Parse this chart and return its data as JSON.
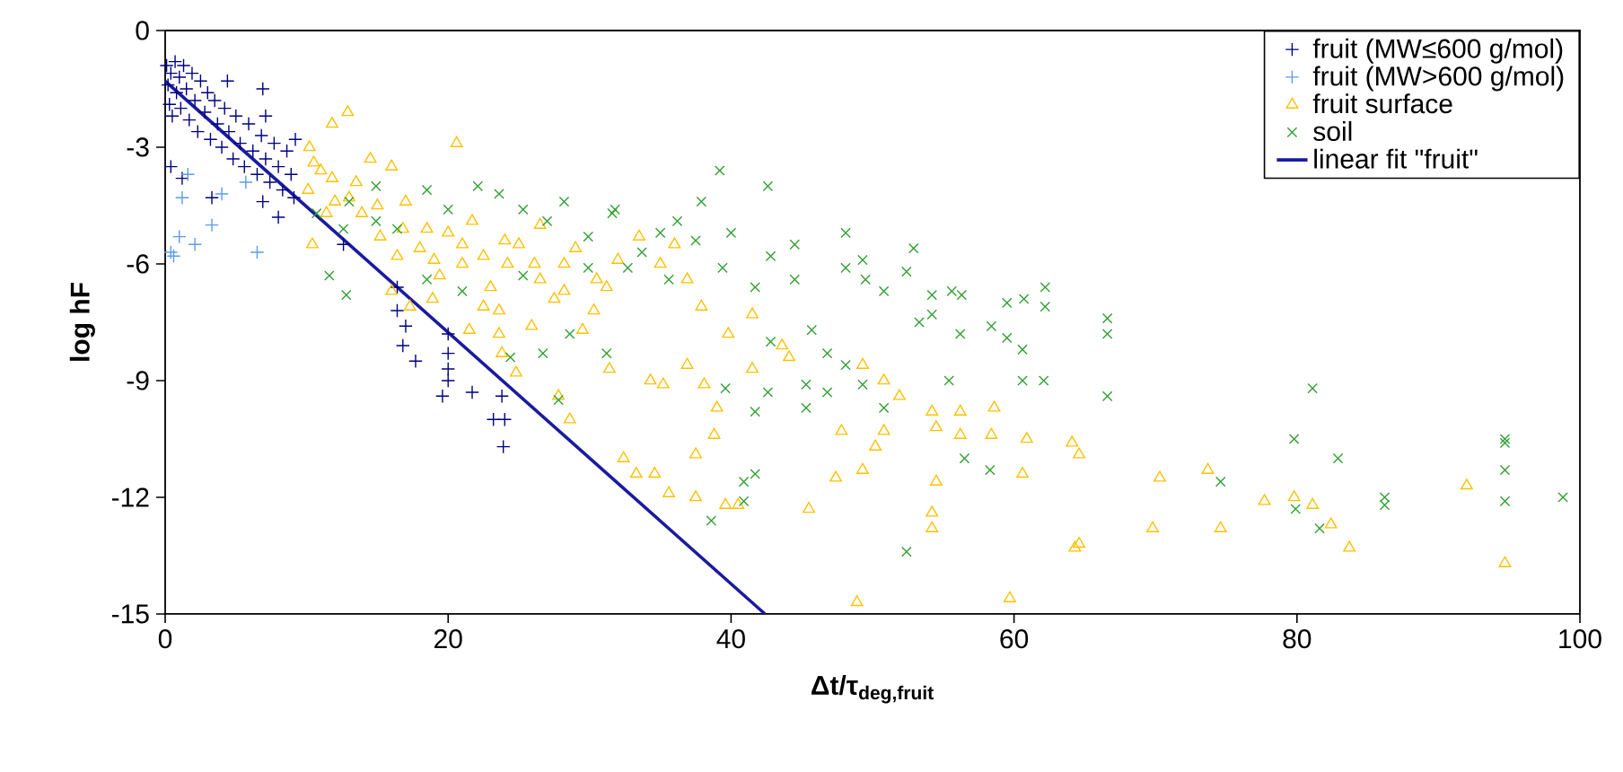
{
  "chart_data": {
    "type": "scatter",
    "xlabel": "Δt/τ$_{deg,fruit}$",
    "ylabel": "log hF",
    "xlim": [
      0,
      100
    ],
    "ylim": [
      -15,
      0
    ],
    "xticks": [
      0,
      20,
      40,
      60,
      80,
      100
    ],
    "yticks": [
      -15,
      -12,
      -9,
      -6,
      -3,
      0
    ],
    "legend": "top right",
    "series": [
      {
        "name": "fruit (MW≤600 g/mol)",
        "marker": "plus",
        "color": "#000080",
        "x": [
          0.1,
          0.2,
          0.3,
          0.4,
          0.5,
          0.7,
          0.8,
          1.0,
          1.1,
          1.3,
          1.5,
          1.7,
          1.9,
          2.1,
          2.3,
          2.5,
          2.8,
          3.0,
          3.2,
          3.5,
          3.7,
          4.0,
          4.2,
          4.5,
          4.8,
          5.0,
          5.3,
          5.6,
          5.9,
          6.2,
          6.5,
          6.8,
          7.1,
          7.4,
          7.7,
          8.0,
          8.3,
          8.6,
          8.9,
          9.1,
          9.2,
          4.4,
          6.9,
          7.1,
          0.4,
          1.2,
          3.3,
          6.9,
          8.0,
          12.6,
          16.4,
          17.0,
          16.8,
          17.7,
          20.0,
          20.0,
          20.0,
          20.0,
          19.6,
          21.7,
          23.8,
          23.2,
          24.0,
          23.9,
          16.4
        ],
        "values": [
          -0.9,
          -1.4,
          -1.9,
          -1.1,
          -2.2,
          -0.8,
          -1.6,
          -1.2,
          -2.0,
          -0.9,
          -1.5,
          -2.3,
          -1.1,
          -1.8,
          -2.6,
          -1.3,
          -2.1,
          -1.6,
          -2.8,
          -1.8,
          -2.4,
          -3.0,
          -2.0,
          -2.6,
          -3.3,
          -2.2,
          -2.9,
          -3.5,
          -2.4,
          -3.1,
          -3.7,
          -2.7,
          -3.3,
          -3.9,
          -2.9,
          -3.5,
          -4.1,
          -3.1,
          -3.7,
          -4.3,
          -2.8,
          -1.3,
          -1.5,
          -2.2,
          -3.5,
          -3.8,
          -4.3,
          -4.4,
          -4.8,
          -5.5,
          -7.2,
          -7.6,
          -8.1,
          -8.5,
          -7.8,
          -8.3,
          -8.7,
          -9.0,
          -9.4,
          -9.3,
          -9.4,
          -10.0,
          -10.0,
          -10.7,
          -6.6
        ]
      },
      {
        "name": "fruit (MW>600 g/mol)",
        "marker": "plus",
        "color": "#5b9bf0",
        "x": [
          0.4,
          0.6,
          1.0,
          1.2,
          1.6,
          2.1,
          3.3,
          4.0,
          5.7,
          6.5
        ],
        "values": [
          -5.7,
          -5.8,
          -5.3,
          -4.3,
          -3.7,
          -5.5,
          -5.0,
          -4.2,
          -3.9,
          -5.7
        ]
      },
      {
        "name": "fruit surface",
        "marker": "triangle",
        "color": "#ffc000",
        "x": [
          11.8,
          12.9,
          20.6,
          14.5,
          16.0,
          10.5,
          11.8,
          10.1,
          13.0,
          11.4,
          13.9,
          10.4,
          15.2,
          16.8,
          18.5,
          16.4,
          16.0,
          17.3,
          18.9,
          19.4,
          21.0,
          21.7,
          21.0,
          21.5,
          24.0,
          24.2,
          23.6,
          23.6,
          23.8,
          24.8,
          25.9,
          27.8,
          28.6,
          28.2,
          28.2,
          29.5,
          30.3,
          31.4,
          31.2,
          26.5,
          26.1,
          22.5,
          10.2,
          11.0,
          12.0,
          13.5,
          15.0,
          17.0,
          18.0,
          19.0,
          20.0,
          22.5,
          23.0,
          25.0,
          26.5,
          27.5,
          29.0,
          30.5,
          32.0,
          33.5,
          35.0,
          36.0,
          36.9,
          37.9,
          39.8,
          41.5,
          41.5,
          43.6,
          44.1,
          36.9,
          34.3,
          35.2,
          38.1,
          39.0,
          38.8,
          37.5,
          32.4,
          33.3,
          34.6,
          35.6,
          37.5,
          39.6,
          40.5,
          45.5,
          47.4,
          49.3,
          47.8,
          50.2,
          50.8,
          49.3,
          50.8,
          51.9,
          54.2,
          54.5,
          56.2,
          56.2,
          58.6,
          58.4,
          60.9,
          54.5,
          54.2,
          54.2,
          60.6,
          48.9,
          59.7,
          64.1,
          64.3,
          64.6,
          64.6,
          70.3,
          69.8,
          73.7,
          74.6,
          77.7,
          79.8,
          81.1,
          82.4,
          83.7,
          92.0,
          94.7
        ],
        "values": [
          -2.4,
          -2.1,
          -2.9,
          -3.3,
          -3.5,
          -3.4,
          -3.8,
          -4.1,
          -4.3,
          -4.7,
          -4.7,
          -5.5,
          -5.3,
          -5.1,
          -5.1,
          -5.8,
          -6.7,
          -7.1,
          -6.9,
          -6.3,
          -6.0,
          -4.9,
          -5.5,
          -7.7,
          -5.4,
          -6.0,
          -7.2,
          -7.8,
          -8.3,
          -8.8,
          -7.6,
          -9.4,
          -10.0,
          -6.0,
          -6.7,
          -7.7,
          -7.2,
          -8.7,
          -6.6,
          -6.4,
          -6.0,
          -7.1,
          -3.0,
          -3.6,
          -4.4,
          -3.9,
          -4.5,
          -4.4,
          -5.6,
          -5.9,
          -5.2,
          -5.8,
          -6.6,
          -5.5,
          -5.0,
          -6.9,
          -5.6,
          -6.4,
          -5.9,
          -5.3,
          -6.0,
          -5.5,
          -6.4,
          -7.1,
          -7.8,
          -7.3,
          -8.7,
          -8.1,
          -8.4,
          -8.6,
          -9.0,
          -9.1,
          -9.1,
          -9.7,
          -10.4,
          -10.9,
          -11.0,
          -11.4,
          -11.4,
          -11.9,
          -12.0,
          -12.2,
          -12.2,
          -12.3,
          -11.5,
          -11.3,
          -10.3,
          -10.7,
          -10.3,
          -8.6,
          -9.0,
          -9.4,
          -9.8,
          -10.2,
          -9.8,
          -10.4,
          -9.7,
          -10.4,
          -10.5,
          -11.6,
          -12.4,
          -12.8,
          -11.4,
          -14.7,
          -14.6,
          -10.6,
          -13.3,
          -10.9,
          -13.2,
          -11.5,
          -12.8,
          -11.3,
          -12.8,
          -12.1,
          -12.0,
          -12.2,
          -12.7,
          -13.3,
          -11.7,
          -13.7
        ]
      },
      {
        "name": "soil",
        "marker": "cross",
        "color": "#33a033",
        "x": [
          14.9,
          13.0,
          10.7,
          12.6,
          14.9,
          16.4,
          18.5,
          20.0,
          22.1,
          23.6,
          25.3,
          27.0,
          28.2,
          29.9,
          31.6,
          11.6,
          12.8,
          18.5,
          21.0,
          24.4,
          26.7,
          28.6,
          27.8,
          31.2,
          29.9,
          25.3,
          39.2,
          42.6,
          37.9,
          31.8,
          36.2,
          35.0,
          40.0,
          37.5,
          33.7,
          32.7,
          39.4,
          42.8,
          44.5,
          44.5,
          35.6,
          48.1,
          49.3,
          52.9,
          48.1,
          49.5,
          50.8,
          52.4,
          54.2,
          55.6,
          56.3,
          54.2,
          53.3,
          56.2,
          59.5,
          60.7,
          62.2,
          62.2,
          58.4,
          59.5,
          60.6,
          60.6,
          62.1,
          55.4,
          49.3,
          50.8,
          45.3,
          46.8,
          45.3,
          48.1,
          45.7,
          46.8,
          42.8,
          41.7,
          39.6,
          41.7,
          42.6,
          41.7,
          40.9,
          40.9,
          38.6,
          52.4,
          56.5,
          58.3,
          66.6,
          66.6,
          66.6,
          81.1,
          79.8,
          82.9,
          74.6,
          79.9,
          81.6,
          86.2,
          86.2,
          94.7,
          94.7,
          94.7,
          94.7,
          98.8
        ],
        "values": [
          -4.0,
          -4.4,
          -4.7,
          -5.1,
          -4.9,
          -5.1,
          -4.1,
          -4.6,
          -4.0,
          -4.2,
          -4.6,
          -4.9,
          -4.4,
          -5.3,
          -4.7,
          -6.3,
          -6.8,
          -6.4,
          -6.7,
          -8.4,
          -8.3,
          -7.8,
          -9.5,
          -8.3,
          -6.1,
          -6.3,
          -3.6,
          -4.0,
          -4.4,
          -4.6,
          -4.9,
          -5.2,
          -5.2,
          -5.4,
          -5.7,
          -6.1,
          -6.1,
          -5.8,
          -5.5,
          -6.4,
          -6.4,
          -5.2,
          -5.9,
          -5.6,
          -6.1,
          -6.4,
          -6.7,
          -6.2,
          -6.8,
          -6.7,
          -6.8,
          -7.3,
          -7.5,
          -7.8,
          -7.0,
          -6.9,
          -6.6,
          -7.1,
          -7.6,
          -7.9,
          -8.2,
          -9.0,
          -9.0,
          -9.0,
          -9.1,
          -9.7,
          -9.1,
          -9.3,
          -9.7,
          -8.6,
          -7.7,
          -8.3,
          -8.0,
          -6.6,
          -9.2,
          -9.8,
          -9.3,
          -11.4,
          -11.6,
          -12.1,
          -12.6,
          -13.4,
          -11.0,
          -11.3,
          -7.4,
          -7.8,
          -9.4,
          -9.2,
          -10.5,
          -11.0,
          -11.6,
          -12.3,
          -12.8,
          -12.0,
          -12.2,
          -10.5,
          -10.6,
          -11.3,
          -12.1,
          -12.0
        ]
      },
      {
        "name": "linear fit \"fruit\"",
        "type": "line",
        "marker": "none",
        "line_style": "solid",
        "color": "#1a1aa0",
        "x": [
          0,
          42.4
        ],
        "values": [
          -1.3,
          -15
        ]
      }
    ]
  }
}
